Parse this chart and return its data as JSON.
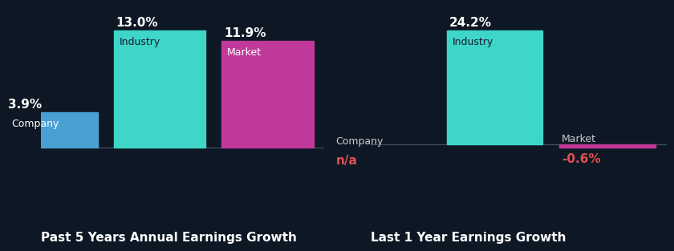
{
  "background_color": "#0e1825",
  "left_title": "Past 5 Years Annual Earnings Growth",
  "right_title": "Last 1 Year Earnings Growth",
  "left_bars": [
    {
      "label": "Company",
      "value": 3.9,
      "color": "#4a9fd5",
      "value_label": "3.9%",
      "value_color": "#ffffff",
      "label_color": "#ffffff"
    },
    {
      "label": "Industry",
      "value": 13.0,
      "color": "#3dd6c8",
      "value_label": "13.0%",
      "value_color": "#ffffff",
      "label_color": "#1a1a2e"
    },
    {
      "label": "Market",
      "value": 11.9,
      "color": "#c0399b",
      "value_label": "11.9%",
      "value_color": "#ffffff",
      "label_color": "#ffffff"
    }
  ],
  "right_bars": [
    {
      "label": "Company",
      "value": 0.0,
      "color": "#4a9fd5",
      "value_label": "n/a",
      "value_color": "#e05050",
      "label_color": "#ffffff"
    },
    {
      "label": "Industry",
      "value": 24.2,
      "color": "#3dd6c8",
      "value_label": "24.2%",
      "value_color": "#ffffff",
      "label_color": "#1a1a2e"
    },
    {
      "label": "Market",
      "value": -0.6,
      "color": "#c0399b",
      "value_label": "-0.6%",
      "value_color": "#e05050",
      "label_color": "#ffffff"
    }
  ],
  "bar_width": 0.85,
  "bar_gap": 1.0,
  "title_fontsize": 11,
  "label_fontsize": 9,
  "value_fontsize": 11
}
